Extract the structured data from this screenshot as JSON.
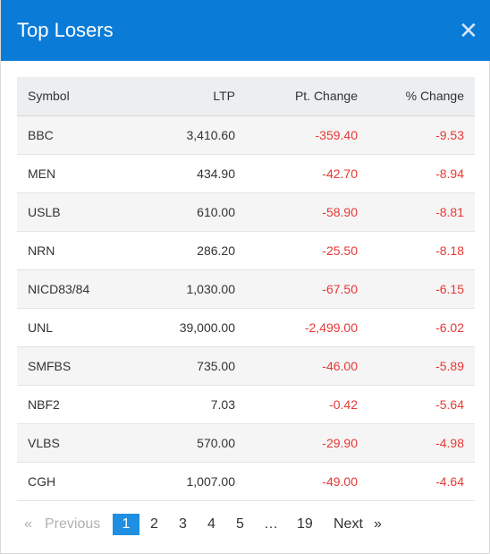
{
  "dialog": {
    "title": "Top Losers",
    "close_glyph": "✕"
  },
  "table": {
    "headers": {
      "symbol": "Symbol",
      "ltp": "LTP",
      "pt_change": "Pt. Change",
      "pct_change": "% Change"
    },
    "rows": [
      {
        "symbol": "BBC",
        "ltp": "3,410.60",
        "pt_change": "-359.40",
        "pct_change": "-9.53"
      },
      {
        "symbol": "MEN",
        "ltp": "434.90",
        "pt_change": "-42.70",
        "pct_change": "-8.94"
      },
      {
        "symbol": "USLB",
        "ltp": "610.00",
        "pt_change": "-58.90",
        "pct_change": "-8.81"
      },
      {
        "symbol": "NRN",
        "ltp": "286.20",
        "pt_change": "-25.50",
        "pct_change": "-8.18"
      },
      {
        "symbol": "NICD83/84",
        "ltp": "1,030.00",
        "pt_change": "-67.50",
        "pct_change": "-6.15"
      },
      {
        "symbol": "UNL",
        "ltp": "39,000.00",
        "pt_change": "-2,499.00",
        "pct_change": "-6.02"
      },
      {
        "symbol": "SMFBS",
        "ltp": "735.00",
        "pt_change": "-46.00",
        "pct_change": "-5.89"
      },
      {
        "symbol": "NBF2",
        "ltp": "7.03",
        "pt_change": "-0.42",
        "pct_change": "-5.64"
      },
      {
        "symbol": "VLBS",
        "ltp": "570.00",
        "pt_change": "-29.90",
        "pct_change": "-4.98"
      },
      {
        "symbol": "CGH",
        "ltp": "1,007.00",
        "pt_change": "-49.00",
        "pct_change": "-4.64"
      }
    ]
  },
  "pagination": {
    "prev_arrow": "«",
    "prev_label": "Previous",
    "pages": [
      "1",
      "2",
      "3",
      "4",
      "5"
    ],
    "ellipsis": "…",
    "last_page": "19",
    "next_label": "Next",
    "next_arrow": "»"
  },
  "colors": {
    "header_bg": "#0b7bd8",
    "negative": "#e53935",
    "active_page": "#1e8fe1"
  }
}
